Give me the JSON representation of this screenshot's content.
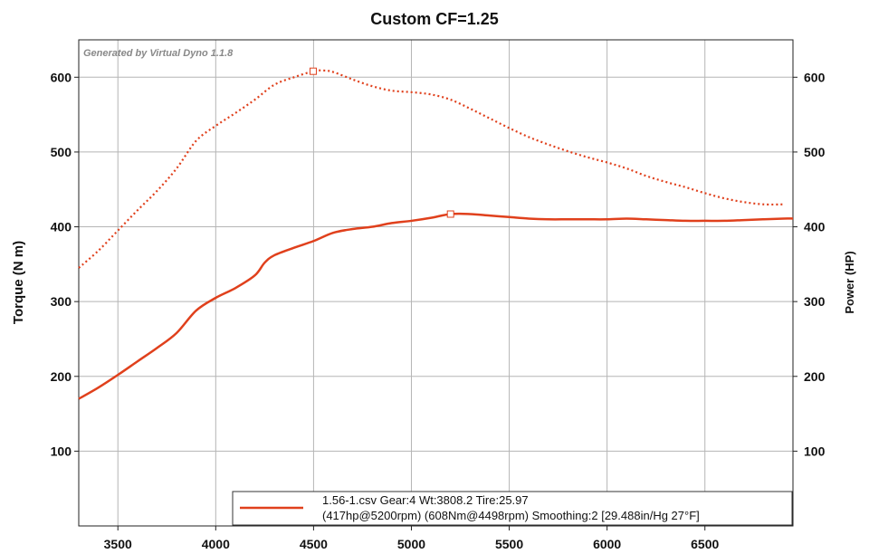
{
  "chart_data": {
    "type": "line",
    "title": "Custom CF=1.25",
    "watermark": "Generated by Virtual Dyno 1.1.8",
    "xlabel": "",
    "ylabel_left": "Torque (N m)",
    "ylabel_right": "Power (HP)",
    "xlim": [
      3300,
      6950
    ],
    "ylim_left": [
      0,
      650
    ],
    "ylim_right": [
      0,
      650
    ],
    "x_ticks": [
      "3500",
      "4000",
      "4500",
      "5000",
      "5500",
      "6000",
      "6500"
    ],
    "y_ticks_left": [
      "100",
      "200",
      "300",
      "400",
      "500",
      "600"
    ],
    "y_ticks_right": [
      "100",
      "200",
      "300",
      "400",
      "500",
      "600"
    ],
    "grid": true,
    "line_color": "#e0401c",
    "series": [
      {
        "name": "Power (HP)",
        "axis": "right",
        "style": "solid",
        "points": [
          [
            3300,
            170
          ],
          [
            3400,
            185
          ],
          [
            3500,
            202
          ],
          [
            3600,
            220
          ],
          [
            3700,
            238
          ],
          [
            3800,
            258
          ],
          [
            3900,
            288
          ],
          [
            4000,
            305
          ],
          [
            4100,
            318
          ],
          [
            4200,
            335
          ],
          [
            4250,
            352
          ],
          [
            4300,
            362
          ],
          [
            4400,
            372
          ],
          [
            4500,
            381
          ],
          [
            4600,
            392
          ],
          [
            4700,
            397
          ],
          [
            4800,
            400
          ],
          [
            4900,
            405
          ],
          [
            5000,
            408
          ],
          [
            5100,
            412
          ],
          [
            5200,
            417
          ],
          [
            5300,
            417
          ],
          [
            5400,
            415
          ],
          [
            5500,
            413
          ],
          [
            5600,
            411
          ],
          [
            5700,
            410
          ],
          [
            5800,
            410
          ],
          [
            5900,
            410
          ],
          [
            6000,
            410
          ],
          [
            6100,
            411
          ],
          [
            6200,
            410
          ],
          [
            6300,
            409
          ],
          [
            6400,
            408
          ],
          [
            6500,
            408
          ],
          [
            6600,
            408
          ],
          [
            6700,
            409
          ],
          [
            6800,
            410
          ],
          [
            6900,
            411
          ],
          [
            6950,
            411
          ]
        ],
        "peak_marker": [
          5200,
          417
        ]
      },
      {
        "name": "Torque (N m)",
        "axis": "left",
        "style": "dotted",
        "points": [
          [
            3300,
            345
          ],
          [
            3400,
            368
          ],
          [
            3500,
            395
          ],
          [
            3600,
            422
          ],
          [
            3700,
            448
          ],
          [
            3800,
            478
          ],
          [
            3900,
            515
          ],
          [
            4000,
            535
          ],
          [
            4100,
            552
          ],
          [
            4200,
            570
          ],
          [
            4300,
            590
          ],
          [
            4400,
            600
          ],
          [
            4498,
            608
          ],
          [
            4550,
            609
          ],
          [
            4600,
            607
          ],
          [
            4700,
            597
          ],
          [
            4800,
            588
          ],
          [
            4900,
            582
          ],
          [
            5000,
            580
          ],
          [
            5100,
            577
          ],
          [
            5200,
            570
          ],
          [
            5300,
            558
          ],
          [
            5400,
            545
          ],
          [
            5500,
            532
          ],
          [
            5600,
            520
          ],
          [
            5700,
            510
          ],
          [
            5800,
            501
          ],
          [
            5900,
            493
          ],
          [
            6000,
            486
          ],
          [
            6100,
            478
          ],
          [
            6200,
            468
          ],
          [
            6300,
            460
          ],
          [
            6400,
            453
          ],
          [
            6500,
            445
          ],
          [
            6600,
            438
          ],
          [
            6700,
            433
          ],
          [
            6800,
            430
          ],
          [
            6900,
            430
          ]
        ],
        "peak_marker": [
          4498,
          608
        ]
      }
    ],
    "legend": {
      "position": "bottom-right",
      "line1": "1.56-1.csv Gear:4 Wt:3808.2 Tire:25.97",
      "line2": "(417hp@5200rpm) (608Nm@4498rpm) Smoothing:2 [29.488in/Hg 27°F]"
    }
  }
}
